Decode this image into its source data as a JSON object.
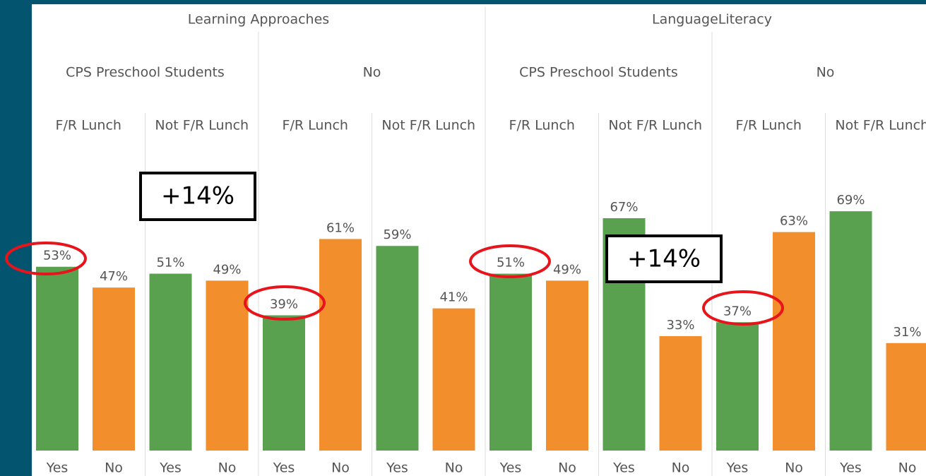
{
  "chart_data": {
    "type": "bar",
    "groups": [
      "Learning Approaches",
      "LanguageLiteracy"
    ],
    "subgroups": [
      "CPS Preschool Students",
      "No",
      "CPS Preschool Students",
      "No"
    ],
    "categories": [
      "F/R Lunch",
      "Not F/R Lunch",
      "F/R Lunch",
      "Not F/R Lunch",
      "F/R Lunch",
      "Not F/R Lunch",
      "F/R Lunch",
      "Not F/R Lunch"
    ],
    "series": [
      {
        "name": "Yes",
        "color": "#59a14f",
        "values": [
          53,
          51,
          39,
          59,
          51,
          67,
          37,
          69
        ],
        "value_labels": [
          "53%",
          "51%",
          "39%",
          "59%",
          "51%",
          "67%",
          "37%",
          "69%"
        ]
      },
      {
        "name": "No",
        "color": "#f28e2b",
        "values": [
          47,
          49,
          61,
          41,
          49,
          33,
          63,
          31
        ],
        "value_labels": [
          "47%",
          "49%",
          "61%",
          "41%",
          "49%",
          "33%",
          "63%",
          "31%"
        ]
      }
    ],
    "annotations": [
      "+14%",
      "+14%"
    ],
    "ylim": [
      0,
      90
    ],
    "yticks": [
      0,
      20,
      40,
      60,
      80
    ],
    "grid": true
  }
}
